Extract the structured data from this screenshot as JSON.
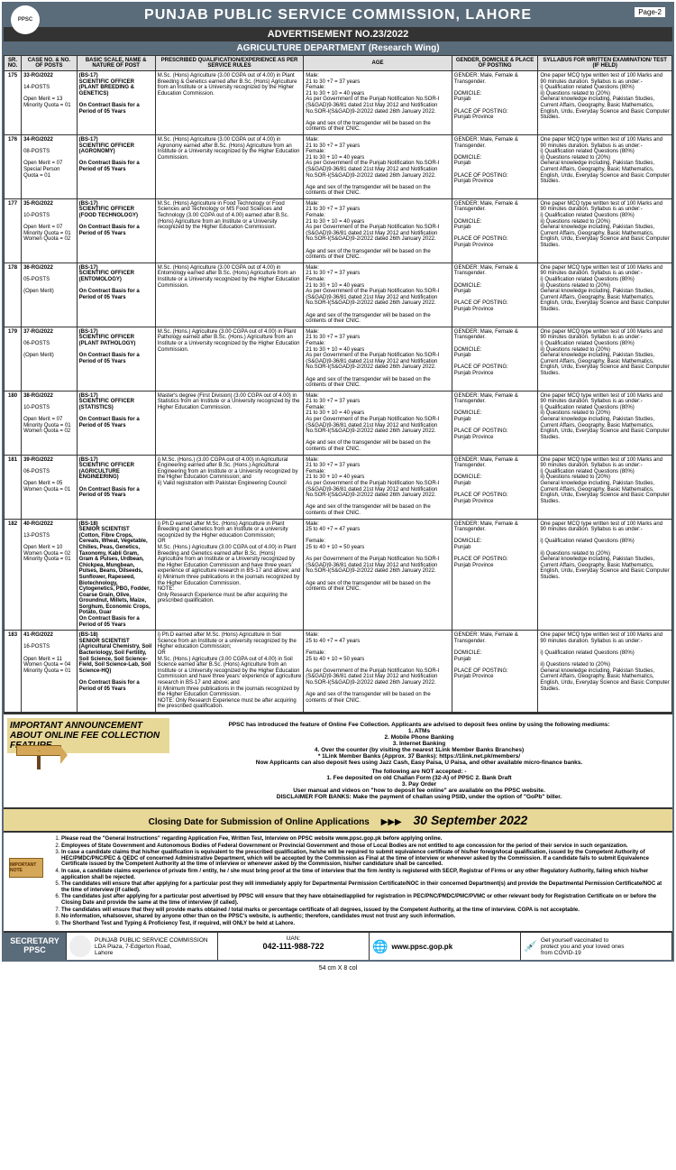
{
  "header": {
    "title": "PUNJAB PUBLIC SERVICE COMMISSION, LAHORE",
    "logo_text": "PPSC",
    "page_label": "Page-2",
    "ad_no": "ADVERTISEMENT NO.23/2022",
    "dept": "AGRICULTURE DEPARTMENT (Research Wing)"
  },
  "columns": {
    "sr": "SR. NO.",
    "case": "CASE NO. & NO. OF POSTS",
    "basic": "BASIC SCALE, NAME & NATURE OF POST",
    "qual": "PRESCRIBED QUALIFICATION/EXPERIENCE AS PER SERVICE RULES",
    "age": "AGE",
    "gender": "GENDER, DOMICILE & PLACE OF POSTING",
    "syllabus": "SYLLABUS FOR WRITTEN EXAMINATION/ TEST (IF HELD)"
  },
  "rows": [
    {
      "sr": "175",
      "case": "33-RG/2022\n\n14-POSTS\n\nOpen Merit = 13\nMinority Quota = 01",
      "basic": "(BS-17)\nSCIENTIFIC OFFICER (PLANT BREEDING & GENETICS)\n\nOn Contract Basis for a Period of 05 Years",
      "qual": "M.Sc. (Hons) Agriculture (3.00 CGPA out of 4.00) in Plant Breeding & Genetics earned after B.Sc. (Hons) Agriculture from an Institute or a University recognized by the Higher Education Commission.",
      "age": "Male:\n21 to 30 +7 = 37 years\nFemale:\n21 to 30 + 10 = 40 years\nAs per Government of the Punjab Notification No.SOR-I (S&GAD)9-36/81 dated 21st May 2012 and Notification No.SOR-I(S&GAD)9-2/2022 dated 26th January 2022.\n\nAge and sex of the transgender will be based on the contents of their CNIC.",
      "gender": "GENDER: Male, Female & Transgender.\n\nDOMICILE:\nPunjab\n\nPLACE OF POSTING:\nPunjab Province",
      "syllabus": "One paper MCQ type written test of 100 Marks and 90 minutes duration. Syllabus is as under:-\ni) Qualification related Questions (80%)\nii) Questions related to (20%)\nGeneral knowledge including, Pakistan Studies, Current Affairs, Geography, Basic Mathematics, English, Urdu, Everyday Science and Basic Computer Studies."
    },
    {
      "sr": "176",
      "case": "34-RG/2022\n\n08-POSTS\n\nOpen Merit = 07\nSpecial Person Quota = 01",
      "basic": "(BS-17)\nSCIENTIFIC OFFICER (AGRONOMY)\n\nOn Contract Basis for a Period of 05 Years",
      "qual": "M.Sc. (Hons) Agriculture (3.00 CGPA out of 4.00) in Agronomy earned after B.Sc. (Hons) Agriculture from an Institute or a University recognized by the Higher Education Commission.",
      "age": "Male:\n21 to 30 +7 = 37 years\nFemale:\n21 to 30 + 10 = 40 years\nAs per Government of the Punjab Notification No.SOR-I (S&GAD)9-36/81 dated 21st May 2012 and Notification No.SOR-I(S&GAD)9-2/2022 dated 26th January 2022.\n\nAge and sex of the transgender will be based on the contents of their CNIC.",
      "gender": "GENDER: Male, Female & Transgender.\n\nDOMICILE:\nPunjab\n\nPLACE OF POSTING:\nPunjab Province",
      "syllabus": "One paper MCQ type written test of 100 Marks and 90 minutes duration. Syllabus is as under:-\ni) Qualification related Questions (80%)\nii) Questions related to (20%)\nGeneral knowledge including, Pakistan Studies, Current Affairs, Geography, Basic Mathematics, English, Urdu, Everyday Science and Basic Computer Studies."
    },
    {
      "sr": "177",
      "case": "35-RG/2022\n\n10-POSTS\n\nOpen Merit = 07\nMinority Quota = 01\nWomen Quota = 02",
      "basic": "(BS-17)\nSCIENTIFIC OFFICER (FOOD TECHNOLOGY)\n\nOn Contract Basis for a Period of 05 Years",
      "qual": "M.Sc. (Hons) Agriculture in Food Technology or Food Sciences and Technology or MS Food Sciences and Technology (3.00 CGPA out of 4.00) earned after B.Sc. (Hons) Agriculture from an Institute or a University recognized by the Higher Education Commission.",
      "age": "Male:\n21 to 30 +7 = 37 years\nFemale:\n21 to 30 + 10 = 40 years\nAs per Government of the Punjab Notification No.SOR-I (S&GAD)9-36/81 dated 21st May 2012 and Notification No.SOR-I(S&GAD)9-2/2022 dated 26th January 2022.\n\nAge and sex of the transgender will be based on the contents of their CNIC.",
      "gender": "GENDER: Male, Female & Transgender.\n\nDOMICILE:\nPunjab\n\nPLACE OF POSTING:\nPunjab Province",
      "syllabus": "One paper MCQ type written test of 100 Marks and 90 minutes duration. Syllabus is as under:-\ni) Qualification related Questions (80%)\nii) Questions related to (20%)\nGeneral knowledge including, Pakistan Studies, Current Affairs, Geography, Basic Mathematics, English, Urdu, Everyday Science and Basic Computer Studies."
    },
    {
      "sr": "178",
      "case": "36-RG/2022\n\n05-POSTS\n\n(Open Merit)",
      "basic": "(BS-17)\nSCIENTIFIC OFFICER (ENTOMOLOGY)\n\nOn Contract Basis for a Period of 05 Years",
      "qual": "M.Sc. (Hons) Agriculture (3.00 CGPA out of 4.00) in Entomology earned after B.Sc. (Hons) Agriculture from an Institute or a University recognized by the Higher Education Commission.",
      "age": "Male:\n21 to 30 +7 = 37 years\nFemale:\n21 to 30 + 10 = 40 years\nAs per Government of the Punjab Notification No.SOR-I (S&GAD)9-36/81 dated 21st May 2012 and Notification No.SOR-I(S&GAD)9-2/2022 dated 26th January 2022.\n\nAge and sex of the transgender will be based on the contents of their CNIC.",
      "gender": "GENDER: Male, Female & Transgender.\n\nDOMICILE:\nPunjab\n\nPLACE OF POSTING:\nPunjab Province",
      "syllabus": "One paper MCQ type written test of 100 Marks and 90 minutes duration. Syllabus is as under:-\ni) Qualification related Questions (80%)\nii) Questions related to (20%)\nGeneral knowledge including, Pakistan Studies, Current Affairs, Geography, Basic Mathematics, English, Urdu, Everyday Science and Basic Computer Studies."
    },
    {
      "sr": "179",
      "case": "37-RG/2022\n\n06-POSTS\n\n(Open Merit)",
      "basic": "(BS-17)\nSCIENTIFIC OFFICER (PLANT PATHOLOGY)\n\nOn Contract Basis for a Period of 05 Years",
      "qual": "M.Sc. (Hons.) Agriculture (3.00 CGPA out of 4.00) in Plant Pathology earned after B.Sc. (Hons.) Agriculture from an Institute or a University recognized by the Higher Education Commission.",
      "age": "Male:\n21 to 30 +7 = 37 years\nFemale:\n21 to 30 + 10 = 40 years\nAs per Government of the Punjab Notification No.SOR-I (S&GAD)9-36/81 dated 21st May 2012 and Notification No.SOR-I(S&GAD)9-2/2022 dated 26th January 2022.\n\nAge and sex of the transgender will be based on the contents of their CNIC.",
      "gender": "GENDER: Male, Female & Transgender.\n\nDOMICILE:\nPunjab\n\nPLACE OF POSTING:\nPunjab Province",
      "syllabus": "One paper MCQ type written test of 100 Marks and 90 minutes duration. Syllabus is as under:-\ni) Qualification related Questions (80%)\nii) Questions related to (20%)\nGeneral knowledge including, Pakistan Studies, Current Affairs, Geography, Basic Mathematics, English, Urdu, Everyday Science and Basic Computer Studies."
    },
    {
      "sr": "180",
      "case": "38-RG/2022\n\n10-POSTS\n\nOpen Merit = 07\nMinority Quota = 01\nWomen Quota = 02",
      "basic": "(BS-17)\nSCIENTIFIC OFFICER (STATISTICS)\n\nOn Contract Basis for a Period of 05 Years",
      "qual": "Master's degree (First Division) (3.00 CGPA out of 4.00) in Statistics from an Institute or a University recognized by the Higher Education Commission.",
      "age": "Male:\n21 to 30 +7 = 37 years\nFemale:\n21 to 30 + 10 = 40 years\nAs per Government of the Punjab Notification No.SOR-I (S&GAD)9-36/81 dated 21st May 2012 and Notification No.SOR-I(S&GAD)9-2/2022 dated 26th January 2022.\n\nAge and sex of the transgender will be based on the contents of their CNIC.",
      "gender": "GENDER: Male, Female & Transgender.\n\nDOMICILE:\nPunjab\n\nPLACE OF POSTING:\nPunjab Province",
      "syllabus": "One paper MCQ type written test of 100 Marks and 90 minutes duration. Syllabus is as under:-\ni) Qualification related Questions (80%)\nii) Questions related to (20%)\nGeneral knowledge including, Pakistan Studies, Current Affairs, Geography, Basic Mathematics, English, Urdu, Everyday Science and Basic Computer Studies."
    },
    {
      "sr": "181",
      "case": "39-RG/2022\n\n06-POSTS\n\nOpen Merit = 05\nWomen Quota = 01",
      "basic": "(BS-17)\nSCIENTIFIC OFFICER (AGRICULTURE ENGINEERING)\n\nOn Contract Basis for a Period of 05 Years",
      "qual": "i) M.Sc. (Hons.) (3.00 CGPA out of 4.00) in Agricultural Engineering earned after B.Sc. (Hons.) Agricultural Engineering from an Institute or a University recognized by the Higher Education Commission; and\nii) Valid registration with Pakistan Engineering Council",
      "age": "Male:\n21 to 30 +7 = 37 years\nFemale:\n21 to 30 + 10 = 40 years\nAs per Government of the Punjab Notification No.SOR-I (S&GAD)9-36/81 dated 21st May 2012 and Notification No.SOR-I(S&GAD)9-2/2022 dated 26th January 2022.\n\nAge and sex of the transgender will be based on the contents of their CNIC.",
      "gender": "GENDER: Male, Female & Transgender.\n\nDOMICILE:\nPunjab\n\nPLACE OF POSTING:\nPunjab Province",
      "syllabus": "One paper MCQ type written test of 100 Marks and 90 minutes duration. Syllabus is as under:-\ni) Qualification related Questions (80%)\nii) Questions related to (20%)\nGeneral knowledge including, Pakistan Studies, Current Affairs, Geography, Basic Mathematics, English, Urdu, Everyday Science and Basic Computer Studies."
    },
    {
      "sr": "182",
      "case": "40-RG/2022\n\n13-POSTS\n\nOpen Merit = 10\nWomen Quota = 02\nMinority Quota = 01",
      "basic": "(BS-18)\nSENIOR SCIENTIST\n(Cotton, Fibre Crops, Cereals, Wheat, Vegetable, Chilies, Peas, Genetics, Taxonomy, Kabli Gram, Gram & Pulses, Urdbean, Chickpea, Mungbean, Pulses, Beans, Oilseeds, Sunflower, Rapeseed, Biotechnology, Cytogenetics, PBG, Fodder, Coarse Grain, Olive, Groundnut, Millets, Maize, Sorghum, Economic Crops, Potato, Guar\nOn Contract Basis for a Period of 05 Years",
      "qual": "i) Ph.D earned after M.Sc. (Hons) Agriculture in Plant Breeding and Genetics from an Institute or a university recognized by the Higher education Commission;\nOR\nM.Sc. (Hons.) Agriculture (3.00 CGPA out of 4.00) in Plant Breeding and Genetics earned after B.Sc. (Hons) Agriculture from an Institute or a University recognized by the Higher Education Commission and have three years' experience of agriculture research in BS-17 and above; and\nii) Minimum three publications in the journals recognized by the Higher Education Commission.\nNOTE:\nOnly Research Experience must be after acquiring the prescribed qualification.",
      "age": "Male:\n25 to 40 +7 = 47 years\n\nFemale:\n25 to 40 + 10 = 50 years\n\nAs per Government of the Punjab Notification No.SOR-I (S&GAD)9-36/81 dated 21st May 2012 and Notification No.SOR-I(S&GAD)9-2/2022 dated 26th January 2022.\n\nAge and sex of the transgender will be based on the contents of their CNIC.",
      "gender": "GENDER: Male, Female & Transgender.\n\nDOMICILE:\nPunjab\n\nPLACE OF POSTING:\nPunjab Province",
      "syllabus": "One paper MCQ type written test of 100 Marks and 90 minutes duration. Syllabus is as under:-\n\ni) Qualification related Questions (80%)\n\nii) Questions related to (20%)\nGeneral knowledge including, Pakistan Studies, Current Affairs, Geography, Basic Mathematics, English, Urdu, Everyday Science and Basic Computer Studies."
    },
    {
      "sr": "183",
      "case": "41-RG/2022\n\n16-POSTS\n\nOpen Merit = 11\nWomen Quota = 04\nMinority Quota = 01",
      "basic": "(BS-18)\nSENIOR SCIENTIST\n(Agricultural Chemistry, Soil Bacteriology, Soil Fertility, Soil Science, Soil Science-Field, Soil Science-Lab, Soil Science-HQ)\n\nOn Contract Basis for a Period of 05 Years",
      "qual": "i) Ph.D earned after M.Sc. (Hons) Agriculture in Soil Science from an Institute or a university recognized by the Higher education Commission;\nOR\nM.Sc. (Hons.) Agriculture (3.00 CGPA out of 4.00) in Soil Science earned after B.Sc. (Hons) Agriculture from an Institute or a University recognized by the Higher Education Commission and have three years' experience of agriculture research in BS-17 and above; and\nii) Minimum three publications in the journals recognized by the Higher Education Commission.\nNOTE: Only Research Experience must be after acquiring the prescribed qualification.",
      "age": "Male:\n25 to 40 +7 = 47 years\n\nFemale:\n25 to 40 + 10 = 50 years\n\nAs per Government of the Punjab Notification No.SOR-I (S&GAD)9-36/81 dated 21st May 2012 and Notification No.SOR-I(S&GAD)9-2/2022 dated 26th January 2022.\n\nAge and sex of the transgender will be based on the contents of their CNIC.",
      "gender": "GENDER: Male, Female & Transgender.\n\nDOMICILE:\nPunjab\n\nPLACE OF POSTING:\nPunjab Province",
      "syllabus": "One paper MCQ type written test of 100 Marks and 90 minutes duration. Syllabus is as under:-\n\ni) Qualification related Questions (80%)\n\nii) Questions related to (20%)\nGeneral knowledge including, Pakistan Studies, Current Affairs, Geography, Basic Mathematics, English, Urdu, Everyday Science and Basic Computer Studies."
    }
  ],
  "announce": {
    "title": "IMPORTANT ANNOUNCEMENT ABOUT ONLINE FEE COLLECTION FEATURE",
    "intro": "PPSC has introduced the feature of Online Fee Collection. Applicants are advised to deposit fees online by using the following mediums:",
    "mediums": "1. ATMs\n2. Mobile Phone Banking\n3. Internet Banking\n4. Over the counter (by visiting the nearest 1Link Member Banks Branches)\n* 1Link Member Banks (Approx. 37 Banks): https://1link.net.pk/members/\nNow Applicants can also deposit fees using Jazz Cash, Easy Paisa, U Paisa, and other available micro-finance banks.",
    "not_accepted": "The following are NOT accepted: -\n1. Fee deposited on old Challan Form (32-A) of PPSC    2. Bank Draft\n3. Pay Order\nUser manual and videos on \"how to deposit fee online\" are available on the PPSC website.\nDISCLAIMER FOR BANKS: Make the payment of challan using PSID, under the option of \"GoPb\" biller."
  },
  "closing": {
    "label": "Closing Date for Submission of Online Applications",
    "arrows": "▶▶▶",
    "date": "30 September 2022"
  },
  "notes": {
    "important_label": "IMPORTANT NOTE",
    "items": [
      "Please read the \"General Instructions\" regarding Application Fee, Written Test, Interview on PPSC website www.ppsc.gop.pk before applying online.",
      "Employees of State Government and Autonomous Bodies of Federal Government or Provincial Government and those of Local Bodies are not entitled to age concession for the period of their service in such organization.",
      "In case a candidate claims that his/her qualification is equivalent to the prescribed qualification, he/she will be required to submit equivalence certificate of his/her foreign/local qualification, issued by the Competent Authority of HEC/PMDC/PNC/PEC & QEDC of concerned Administrative Department, which will be accepted by the Commission as Final at the time of interview or whenever asked by the Commission. If a candidate fails to submit Equivalence Certificate issued by the Competent Authority at the time of interview or whenever asked by the Commission, his/her candidature shall be cancelled.",
      "In case, a candidate claims experience of private firm / entity, he / she must bring proof at the time of interview that the firm /entity is registered with SECP, Registrar of Firms or any other Regulatory Authority, failing which his/her application shall be rejected.",
      "The candidates will ensure that after applying for a particular post they will immediately apply for Departmental Permission Certificate/NOC in their concerned Department(s) and provide the Departmental Permission Certificate/NOC at the time of interview (if called).",
      "The candidates just after applying for a particular post advertised by PPSC will ensure that they have obtained/applied for registration in PEC/PNC/PMDC/PMC/PVMC or other relevant body for Registration Certificate on or before the Closing Date and provide the same at the time of interview (if called).",
      "The candidates will ensure that they will provide marks obtained / total marks or percentage certificate of all degrees, issued by the Competent Authority, at the time of interview. CGPA is not acceptable.",
      "No information, whatsoever, shared by anyone other than on the PPSC's website, is authentic; therefore, candidates must not trust any such information.",
      "The Shorthand Test and Typing & Proficiency Test, if required, will ONLY be held at Lahore."
    ]
  },
  "footer": {
    "secretary": "SECRETARY\nPPSC",
    "address": "PUNJAB PUBLIC SERVICE COMMISSION\nLDA Plaza, 7-Edgerton Road,\nLahore",
    "uan_label": "UAN:",
    "uan": "042-111-988-722",
    "website": "www.ppsc.gop.pk",
    "vaccine": "Get yourself vaccinated to\nprotect you and your loved ones\nfrom COVID-19"
  },
  "dimensions": "54 cm X 8 col"
}
